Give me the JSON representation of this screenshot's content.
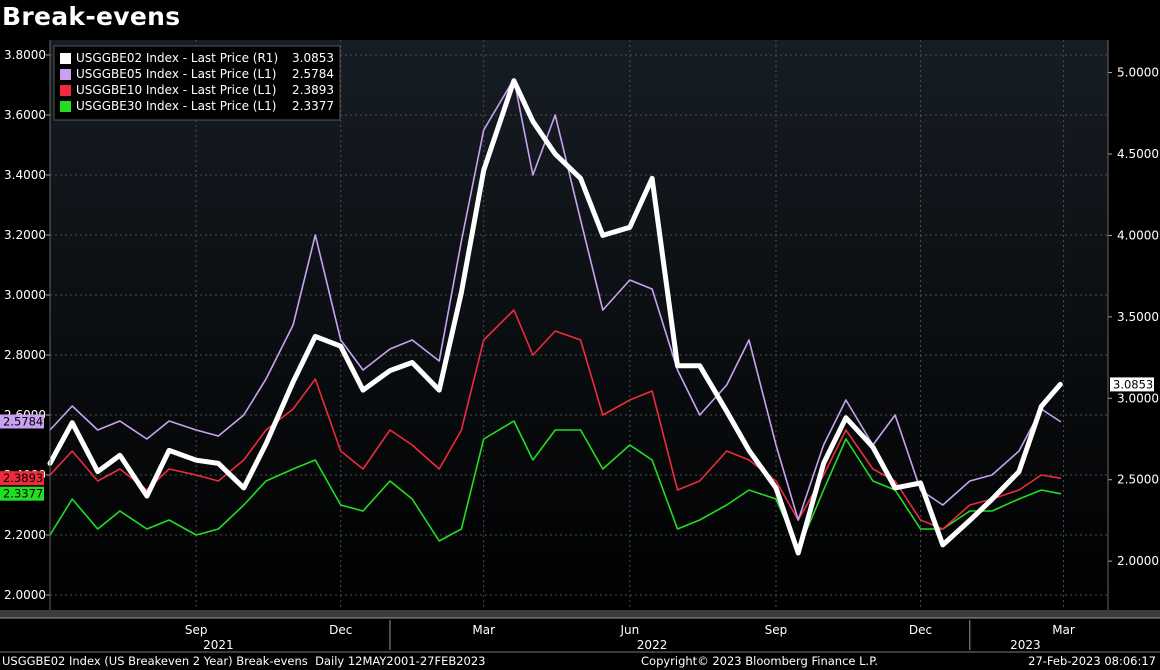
{
  "title": "Break-evens",
  "footer": {
    "left": "USGGBE02 Index (US Breakeven 2 Year) Break-evens  Daily 12MAY2001-27FEB2023",
    "center": "Copyright© 2023 Bloomberg Finance L.P.",
    "right": "27-Feb-2023 08:06:17"
  },
  "colors": {
    "background": "#000000",
    "usggbe02": "#ffffff",
    "usggbe05": "#c8a2f0",
    "usggbe10": "#ee2b3c",
    "usggbe30": "#22dd22"
  },
  "chart_data": {
    "type": "line",
    "grid": true,
    "legend_position": "top-left",
    "x_tick_labels": [
      "Sep",
      "Dec",
      "Mar",
      "Jun",
      "Sep",
      "Dec",
      "Mar"
    ],
    "x_year_labels": [
      "2021",
      "2022",
      "2023"
    ],
    "left_axis": {
      "ylim": [
        1.95,
        3.85
      ],
      "ticks": [
        "2.0000",
        "2.2000",
        "2.4000",
        "2.6000",
        "2.8000",
        "3.0000",
        "3.2000",
        "3.4000",
        "3.6000",
        "3.8000"
      ]
    },
    "right_axis": {
      "ylim": [
        1.7,
        5.2
      ],
      "ticks": [
        "2.0000",
        "2.5000",
        "3.0000",
        "3.5000",
        "4.0000",
        "4.5000",
        "5.0000"
      ]
    },
    "series": [
      {
        "name": "USGGBE02 Index - Last Price (R1)",
        "last": "3.0853",
        "axis": "right",
        "color": "#ffffff",
        "points": [
          [
            "2021-06-01",
            2.6
          ],
          [
            "2021-06-15",
            2.85
          ],
          [
            "2021-07-01",
            2.55
          ],
          [
            "2021-07-15",
            2.65
          ],
          [
            "2021-08-01",
            2.4
          ],
          [
            "2021-08-15",
            2.68
          ],
          [
            "2021-09-01",
            2.62
          ],
          [
            "2021-09-15",
            2.6
          ],
          [
            "2021-10-01",
            2.45
          ],
          [
            "2021-10-15",
            2.72
          ],
          [
            "2021-11-01",
            3.1
          ],
          [
            "2021-11-15",
            3.38
          ],
          [
            "2021-12-01",
            3.32
          ],
          [
            "2021-12-15",
            3.05
          ],
          [
            "2022-01-01",
            3.17
          ],
          [
            "2022-01-15",
            3.22
          ],
          [
            "2022-02-01",
            3.05
          ],
          [
            "2022-02-15",
            3.65
          ],
          [
            "2022-03-01",
            4.4
          ],
          [
            "2022-03-20",
            4.95
          ],
          [
            "2022-04-01",
            4.7
          ],
          [
            "2022-04-15",
            4.5
          ],
          [
            "2022-05-01",
            4.35
          ],
          [
            "2022-05-15",
            4.0
          ],
          [
            "2022-06-01",
            4.05
          ],
          [
            "2022-06-15",
            4.35
          ],
          [
            "2022-07-01",
            3.2
          ],
          [
            "2022-07-15",
            3.2
          ],
          [
            "2022-08-01",
            2.92
          ],
          [
            "2022-08-15",
            2.68
          ],
          [
            "2022-09-01",
            2.45
          ],
          [
            "2022-09-15",
            2.05
          ],
          [
            "2022-10-01",
            2.6
          ],
          [
            "2022-10-15",
            2.88
          ],
          [
            "2022-11-01",
            2.7
          ],
          [
            "2022-11-15",
            2.45
          ],
          [
            "2022-12-01",
            2.48
          ],
          [
            "2022-12-15",
            2.1
          ],
          [
            "2023-01-01",
            2.25
          ],
          [
            "2023-01-15",
            2.38
          ],
          [
            "2023-02-01",
            2.55
          ],
          [
            "2023-02-15",
            2.95
          ],
          [
            "2023-02-27",
            3.0853
          ]
        ]
      },
      {
        "name": "USGGBE05 Index - Last Price (L1)",
        "last": "2.5784",
        "axis": "left",
        "color": "#c8a2f0",
        "points": [
          [
            "2021-06-01",
            2.55
          ],
          [
            "2021-06-15",
            2.63
          ],
          [
            "2021-07-01",
            2.55
          ],
          [
            "2021-07-15",
            2.58
          ],
          [
            "2021-08-01",
            2.52
          ],
          [
            "2021-08-15",
            2.58
          ],
          [
            "2021-09-01",
            2.55
          ],
          [
            "2021-09-15",
            2.53
          ],
          [
            "2021-10-01",
            2.6
          ],
          [
            "2021-10-15",
            2.72
          ],
          [
            "2021-11-01",
            2.9
          ],
          [
            "2021-11-15",
            3.2
          ],
          [
            "2021-12-01",
            2.85
          ],
          [
            "2021-12-15",
            2.75
          ],
          [
            "2022-01-01",
            2.82
          ],
          [
            "2022-01-15",
            2.85
          ],
          [
            "2022-02-01",
            2.78
          ],
          [
            "2022-02-15",
            3.18
          ],
          [
            "2022-03-01",
            3.55
          ],
          [
            "2022-03-20",
            3.72
          ],
          [
            "2022-04-01",
            3.4
          ],
          [
            "2022-04-15",
            3.6
          ],
          [
            "2022-05-01",
            3.25
          ],
          [
            "2022-05-15",
            2.95
          ],
          [
            "2022-06-01",
            3.05
          ],
          [
            "2022-06-15",
            3.02
          ],
          [
            "2022-07-01",
            2.75
          ],
          [
            "2022-07-15",
            2.6
          ],
          [
            "2022-08-01",
            2.7
          ],
          [
            "2022-08-15",
            2.85
          ],
          [
            "2022-09-01",
            2.5
          ],
          [
            "2022-09-15",
            2.25
          ],
          [
            "2022-10-01",
            2.5
          ],
          [
            "2022-10-15",
            2.65
          ],
          [
            "2022-11-01",
            2.5
          ],
          [
            "2022-11-15",
            2.6
          ],
          [
            "2022-12-01",
            2.35
          ],
          [
            "2022-12-15",
            2.3
          ],
          [
            "2023-01-01",
            2.38
          ],
          [
            "2023-01-15",
            2.4
          ],
          [
            "2023-02-01",
            2.48
          ],
          [
            "2023-02-15",
            2.62
          ],
          [
            "2023-02-27",
            2.5784
          ]
        ]
      },
      {
        "name": "USGGBE10 Index - Last Price (L1)",
        "last": "2.3893",
        "axis": "left",
        "color": "#ee2b3c",
        "points": [
          [
            "2021-06-01",
            2.4
          ],
          [
            "2021-06-15",
            2.48
          ],
          [
            "2021-07-01",
            2.38
          ],
          [
            "2021-07-15",
            2.42
          ],
          [
            "2021-08-01",
            2.35
          ],
          [
            "2021-08-15",
            2.42
          ],
          [
            "2021-09-01",
            2.4
          ],
          [
            "2021-09-15",
            2.38
          ],
          [
            "2021-10-01",
            2.45
          ],
          [
            "2021-10-15",
            2.55
          ],
          [
            "2021-11-01",
            2.62
          ],
          [
            "2021-11-15",
            2.72
          ],
          [
            "2021-12-01",
            2.48
          ],
          [
            "2021-12-15",
            2.42
          ],
          [
            "2022-01-01",
            2.55
          ],
          [
            "2022-01-15",
            2.5
          ],
          [
            "2022-02-01",
            2.42
          ],
          [
            "2022-02-15",
            2.55
          ],
          [
            "2022-03-01",
            2.85
          ],
          [
            "2022-03-20",
            2.95
          ],
          [
            "2022-04-01",
            2.8
          ],
          [
            "2022-04-15",
            2.88
          ],
          [
            "2022-05-01",
            2.85
          ],
          [
            "2022-05-15",
            2.6
          ],
          [
            "2022-06-01",
            2.65
          ],
          [
            "2022-06-15",
            2.68
          ],
          [
            "2022-07-01",
            2.35
          ],
          [
            "2022-07-15",
            2.38
          ],
          [
            "2022-08-01",
            2.48
          ],
          [
            "2022-08-15",
            2.45
          ],
          [
            "2022-09-01",
            2.38
          ],
          [
            "2022-09-15",
            2.25
          ],
          [
            "2022-10-01",
            2.4
          ],
          [
            "2022-10-15",
            2.55
          ],
          [
            "2022-11-01",
            2.42
          ],
          [
            "2022-11-15",
            2.38
          ],
          [
            "2022-12-01",
            2.25
          ],
          [
            "2022-12-15",
            2.22
          ],
          [
            "2023-01-01",
            2.3
          ],
          [
            "2023-01-15",
            2.32
          ],
          [
            "2023-02-01",
            2.35
          ],
          [
            "2023-02-15",
            2.4
          ],
          [
            "2023-02-27",
            2.3893
          ]
        ]
      },
      {
        "name": "USGGBE30 Index - Last Price (L1)",
        "last": "2.3377",
        "axis": "left",
        "color": "#22dd22",
        "points": [
          [
            "2021-06-01",
            2.2
          ],
          [
            "2021-06-15",
            2.32
          ],
          [
            "2021-07-01",
            2.22
          ],
          [
            "2021-07-15",
            2.28
          ],
          [
            "2021-08-01",
            2.22
          ],
          [
            "2021-08-15",
            2.25
          ],
          [
            "2021-09-01",
            2.2
          ],
          [
            "2021-09-15",
            2.22
          ],
          [
            "2021-10-01",
            2.3
          ],
          [
            "2021-10-15",
            2.38
          ],
          [
            "2021-11-01",
            2.42
          ],
          [
            "2021-11-15",
            2.45
          ],
          [
            "2021-12-01",
            2.3
          ],
          [
            "2021-12-15",
            2.28
          ],
          [
            "2022-01-01",
            2.38
          ],
          [
            "2022-01-15",
            2.32
          ],
          [
            "2022-02-01",
            2.18
          ],
          [
            "2022-02-15",
            2.22
          ],
          [
            "2022-03-01",
            2.52
          ],
          [
            "2022-03-20",
            2.58
          ],
          [
            "2022-04-01",
            2.45
          ],
          [
            "2022-04-15",
            2.55
          ],
          [
            "2022-05-01",
            2.55
          ],
          [
            "2022-05-15",
            2.42
          ],
          [
            "2022-06-01",
            2.5
          ],
          [
            "2022-06-15",
            2.45
          ],
          [
            "2022-07-01",
            2.22
          ],
          [
            "2022-07-15",
            2.25
          ],
          [
            "2022-08-01",
            2.3
          ],
          [
            "2022-08-15",
            2.35
          ],
          [
            "2022-09-01",
            2.32
          ],
          [
            "2022-09-15",
            2.15
          ],
          [
            "2022-10-01",
            2.35
          ],
          [
            "2022-10-15",
            2.52
          ],
          [
            "2022-11-01",
            2.38
          ],
          [
            "2022-11-15",
            2.35
          ],
          [
            "2022-12-01",
            2.22
          ],
          [
            "2022-12-15",
            2.22
          ],
          [
            "2023-01-01",
            2.28
          ],
          [
            "2023-01-15",
            2.28
          ],
          [
            "2023-02-01",
            2.32
          ],
          [
            "2023-02-15",
            2.35
          ],
          [
            "2023-02-27",
            2.3377
          ]
        ]
      }
    ]
  }
}
